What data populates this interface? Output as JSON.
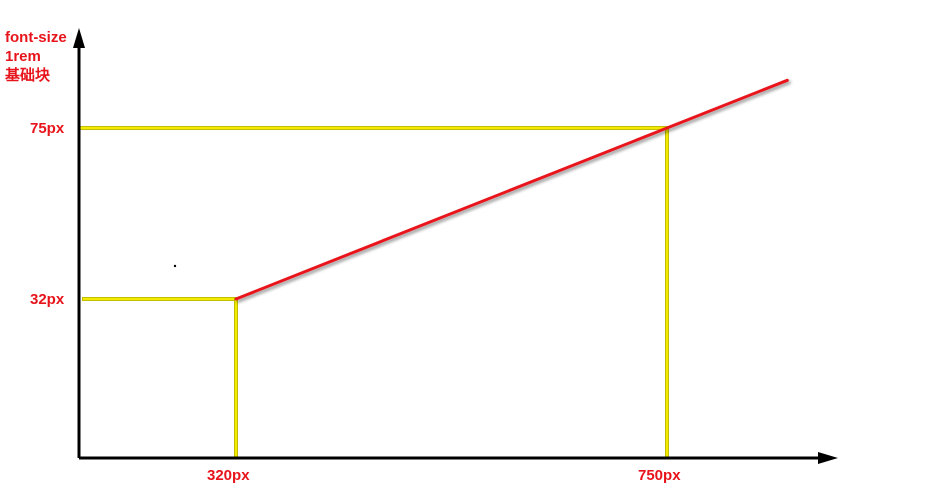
{
  "chart_data": {
    "type": "line",
    "title": "",
    "ylabel_lines": [
      "font-size",
      "1rem",
      "基础块"
    ],
    "xlabel": "",
    "x_ticks": [
      {
        "label": "320px",
        "value": 320
      },
      {
        "label": "750px",
        "value": 750
      }
    ],
    "y_ticks": [
      {
        "label": "32px",
        "value": 32
      },
      {
        "label": "75px",
        "value": 75
      }
    ],
    "series": [
      {
        "color": "#e8141b",
        "points": [
          {
            "x": 320,
            "y": 32
          },
          {
            "x": 750,
            "y": 75
          },
          {
            "x": 870,
            "y": 87
          }
        ]
      }
    ],
    "guide_color": "#f2ea00",
    "axis_color": "#000000",
    "label_color": "#e8141b",
    "grid": false,
    "legend": "none"
  }
}
